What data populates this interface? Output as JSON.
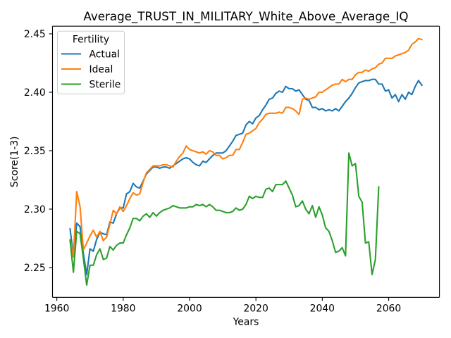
{
  "chart_data": {
    "type": "line",
    "title": "Average_TRUST_IN_MILITARY_White_Above_Average_IQ",
    "xlabel": "Years",
    "ylabel": "Score(1-3)",
    "xlim": [
      1958.7,
      2075.3
    ],
    "ylim": [
      2.2245,
      2.4565
    ],
    "grid": false,
    "x_ticks": [
      "1960",
      "1980",
      "2000",
      "2020",
      "2040",
      "2060"
    ],
    "y_ticks": [
      "2.25",
      "2.30",
      "2.35",
      "2.40",
      "2.45"
    ],
    "legend": {
      "title": "Fertility",
      "placement": "top-left"
    },
    "x": [
      1964,
      1965,
      1966,
      1967,
      1968,
      1969,
      1970,
      1971,
      1972,
      1973,
      1974,
      1975,
      1976,
      1977,
      1978,
      1979,
      1980,
      1981,
      1982,
      1983,
      1984,
      1985,
      1986,
      1987,
      1988,
      1989,
      1990,
      1991,
      1992,
      1993,
      1994,
      1995,
      1996,
      1997,
      1998,
      1999,
      2000,
      2001,
      2002,
      2003,
      2004,
      2005,
      2006,
      2007,
      2008,
      2009,
      2010,
      2011,
      2012,
      2013,
      2014,
      2015,
      2016,
      2017,
      2018,
      2019,
      2020,
      2021,
      2022,
      2023,
      2024,
      2025,
      2026,
      2027,
      2028,
      2029,
      2030,
      2031,
      2032,
      2033,
      2034,
      2035,
      2036,
      2037,
      2038,
      2039,
      2040,
      2041,
      2042,
      2043,
      2044,
      2045,
      2046,
      2047,
      2048,
      2049,
      2050,
      2051,
      2052,
      2053,
      2054,
      2055,
      2056,
      2057,
      2058,
      2059,
      2060,
      2061,
      2062,
      2063,
      2064,
      2065,
      2066,
      2067,
      2068,
      2069,
      2070
    ],
    "series": [
      {
        "name": "Actual",
        "color": "#1f77b4",
        "values": [
          2.283,
          2.26,
          2.288,
          2.285,
          2.262,
          2.244,
          2.266,
          2.264,
          2.274,
          2.28,
          2.279,
          2.278,
          2.289,
          2.288,
          2.296,
          2.301,
          2.301,
          2.313,
          2.315,
          2.322,
          2.319,
          2.318,
          2.324,
          2.33,
          2.333,
          2.336,
          2.336,
          2.335,
          2.336,
          2.336,
          2.335,
          2.337,
          2.339,
          2.341,
          2.343,
          2.344,
          2.343,
          2.34,
          2.338,
          2.337,
          2.341,
          2.34,
          2.343,
          2.346,
          2.348,
          2.348,
          2.348,
          2.35,
          2.354,
          2.358,
          2.363,
          2.364,
          2.365,
          2.372,
          2.375,
          2.373,
          2.378,
          2.38,
          2.385,
          2.389,
          2.394,
          2.395,
          2.399,
          2.401,
          2.4,
          2.405,
          2.403,
          2.403,
          2.401,
          2.402,
          2.398,
          2.394,
          2.393,
          2.387,
          2.387,
          2.385,
          2.386,
          2.384,
          2.385,
          2.384,
          2.386,
          2.384,
          2.388,
          2.392,
          2.395,
          2.399,
          2.404,
          2.408,
          2.409,
          2.41,
          2.41,
          2.411,
          2.411,
          2.407,
          2.407,
          2.401,
          2.402,
          2.395,
          2.398,
          2.392,
          2.398,
          2.394,
          2.4,
          2.398,
          2.405,
          2.41,
          2.406
        ]
      },
      {
        "name": "Ideal",
        "color": "#ff7f0e",
        "values": [
          2.274,
          2.259,
          2.315,
          2.302,
          2.265,
          2.271,
          2.277,
          2.282,
          2.276,
          2.281,
          2.273,
          2.276,
          2.287,
          2.299,
          2.296,
          2.302,
          2.298,
          2.303,
          2.309,
          2.314,
          2.312,
          2.313,
          2.323,
          2.331,
          2.334,
          2.337,
          2.337,
          2.337,
          2.338,
          2.338,
          2.337,
          2.336,
          2.341,
          2.345,
          2.348,
          2.354,
          2.351,
          2.35,
          2.349,
          2.348,
          2.349,
          2.347,
          2.35,
          2.349,
          2.346,
          2.346,
          2.343,
          2.344,
          2.346,
          2.346,
          2.351,
          2.351,
          2.357,
          2.364,
          2.365,
          2.367,
          2.369,
          2.374,
          2.377,
          2.381,
          2.382,
          2.382,
          2.382,
          2.383,
          2.382,
          2.387,
          2.387,
          2.386,
          2.384,
          2.381,
          2.394,
          2.395,
          2.394,
          2.395,
          2.396,
          2.4,
          2.4,
          2.402,
          2.404,
          2.406,
          2.407,
          2.407,
          2.411,
          2.409,
          2.411,
          2.411,
          2.415,
          2.417,
          2.417,
          2.419,
          2.418,
          2.42,
          2.421,
          2.424,
          2.425,
          2.429,
          2.429,
          2.429,
          2.431,
          2.432,
          2.433,
          2.434,
          2.436,
          2.441,
          2.443,
          2.446,
          2.445
        ]
      },
      {
        "name": "Sterile",
        "color": "#2ca02c",
        "values": [
          2.273,
          2.246,
          2.281,
          2.279,
          2.258,
          2.235,
          2.252,
          2.252,
          2.261,
          2.266,
          2.257,
          2.258,
          2.268,
          2.265,
          2.269,
          2.271,
          2.271,
          2.278,
          2.284,
          2.292,
          2.292,
          2.29,
          2.294,
          2.296,
          2.293,
          2.297,
          2.294,
          2.297,
          2.299,
          2.3,
          2.301,
          2.303,
          2.302,
          2.301,
          2.301,
          2.301,
          2.302,
          2.302,
          2.304,
          2.303,
          2.304,
          2.302,
          2.304,
          2.302,
          2.299,
          2.299,
          2.298,
          2.297,
          2.297,
          2.298,
          2.301,
          2.299,
          2.3,
          2.304,
          2.311,
          2.309,
          2.311,
          2.31,
          2.31,
          2.317,
          2.318,
          2.315,
          2.321,
          2.321,
          2.321,
          2.324,
          2.318,
          2.312,
          2.302,
          2.303,
          2.307,
          2.3,
          2.296,
          2.303,
          2.293,
          2.302,
          2.295,
          2.284,
          2.281,
          2.273,
          2.263,
          2.264,
          2.267,
          2.26,
          2.348,
          2.337,
          2.339,
          2.311,
          2.306,
          2.271,
          2.272,
          2.244,
          2.257,
          2.319,
          null,
          null,
          null,
          null,
          null,
          null,
          null,
          null,
          null,
          null,
          null,
          null,
          null
        ]
      }
    ]
  }
}
